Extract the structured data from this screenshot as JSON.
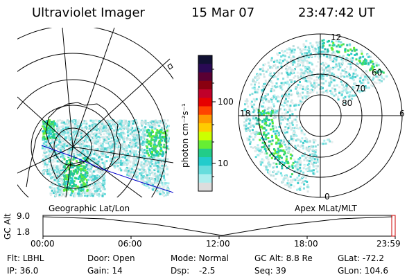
{
  "header": {
    "instrument": "Ultraviolet Imager",
    "date": "15 Mar 07",
    "time": "23:47:42 UT"
  },
  "colorbar": {
    "unit_label": "photon cm⁻²s⁻¹",
    "ticks": [
      "100",
      "10"
    ],
    "colors": [
      "#111133",
      "#2a0a55",
      "#5a0033",
      "#8a0010",
      "#c0002a",
      "#e60000",
      "#ff4400",
      "#ff9900",
      "#ffcc00",
      "#ccff00",
      "#66ee33",
      "#22cc88",
      "#22cccc",
      "#66dddd",
      "#aaeeee",
      "#dddddd"
    ]
  },
  "left_map": {
    "caption": "Geographic Lat/Lon"
  },
  "right_map": {
    "caption": "Apex MLat/MLT",
    "mlt_labels": [
      "12",
      "18",
      "6",
      "0"
    ],
    "mlat_labels": [
      "60",
      "70",
      "80"
    ]
  },
  "timeline": {
    "axis_label": "GC Alt",
    "y_ticks": [
      "9.0",
      "1.8"
    ],
    "x_ticks": [
      "00:00",
      "06:00",
      "12:00",
      "18:00",
      "23:59"
    ],
    "marker_color": "#cc0000"
  },
  "status": {
    "filter_label": "Flt:",
    "filter_value": "LBHL",
    "ip_label": "IP:",
    "ip_value": "36.0",
    "door_label": "Door:",
    "door_value": "Open",
    "gain_label": "Gain:",
    "gain_value": "14",
    "mode_label": "Mode:",
    "mode_value": "Normal",
    "dsp_label": "Dsp:",
    "dsp_value": "-2.5",
    "gcalt_label": "GC Alt:",
    "gcalt_value": "8.8 Re",
    "seq_label": "Seq:",
    "seq_value": "39",
    "glat_label": "GLat:",
    "glat_value": "-72.2",
    "glon_label": "GLon:",
    "glon_value": "104.6"
  }
}
